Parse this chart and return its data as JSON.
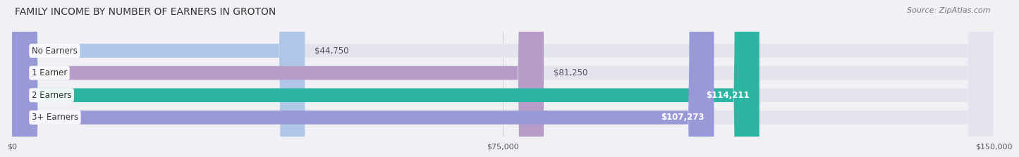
{
  "title": "FAMILY INCOME BY NUMBER OF EARNERS IN GROTON",
  "source": "Source: ZipAtlas.com",
  "categories": [
    "No Earners",
    "1 Earner",
    "2 Earners",
    "3+ Earners"
  ],
  "values": [
    44750,
    81250,
    114211,
    107273
  ],
  "bar_colors": [
    "#aec6e8",
    "#b89cc8",
    "#2db5a3",
    "#9999d8"
  ],
  "label_colors": [
    "#555555",
    "#555555",
    "#ffffff",
    "#ffffff"
  ],
  "xlim": [
    0,
    150000
  ],
  "xticks": [
    0,
    75000,
    150000
  ],
  "xtick_labels": [
    "$0",
    "$75,000",
    "$150,000"
  ],
  "background_color": "#f0f0f5",
  "bar_bg_color": "#e4e4ee",
  "title_fontsize": 10,
  "source_fontsize": 8,
  "bar_height": 0.62,
  "bar_label_fontsize": 8.5,
  "cat_label_fontsize": 8.5
}
